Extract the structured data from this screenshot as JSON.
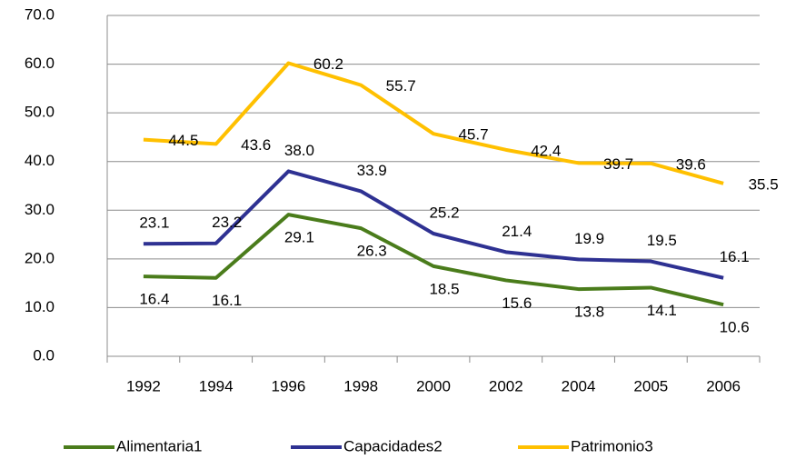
{
  "chart_data": {
    "type": "line",
    "categories": [
      "1992",
      "1994",
      "1996",
      "1998",
      "2000",
      "2002",
      "2004",
      "2005",
      "2006"
    ],
    "series": [
      {
        "name": "Alimentaria1",
        "color": "#4a7c1b",
        "values": [
          16.4,
          16.1,
          29.1,
          26.3,
          18.5,
          15.6,
          13.8,
          14.1,
          10.6
        ],
        "value_labels": [
          "16.4",
          "16.1",
          "29.1",
          "26.3",
          "18.5",
          "15.6",
          "13.8",
          "14.1",
          "10.6"
        ]
      },
      {
        "name": "Capacidades2",
        "color": "#2e3192",
        "values": [
          23.1,
          23.2,
          38.0,
          33.9,
          25.2,
          21.4,
          19.9,
          19.5,
          16.1
        ],
        "value_labels": [
          "23.1",
          "23.2",
          "38.0",
          "33.9",
          "25.2",
          "21.4",
          "19.9",
          "19.5",
          "16.1"
        ]
      },
      {
        "name": "Patrimonio3",
        "color": "#ffc000",
        "values": [
          44.5,
          43.6,
          60.2,
          55.7,
          45.7,
          42.4,
          39.7,
          39.6,
          35.5
        ],
        "value_labels": [
          "44.5",
          "43.6",
          "60.2",
          "55.7",
          "45.7",
          "42.4",
          "39.7",
          "39.6",
          "35.5"
        ]
      }
    ],
    "ylim": [
      0,
      70
    ],
    "yticks": [
      {
        "value": 0,
        "label": "0.0"
      },
      {
        "value": 10,
        "label": "10.0"
      },
      {
        "value": 20,
        "label": "20.0"
      },
      {
        "value": 30,
        "label": "30.0"
      },
      {
        "value": 40,
        "label": "40.0"
      },
      {
        "value": 50,
        "label": "50.0"
      },
      {
        "value": 60,
        "label": "60.0"
      },
      {
        "value": 70,
        "label": "70.0"
      }
    ],
    "grid": true,
    "legend": "bottom"
  }
}
